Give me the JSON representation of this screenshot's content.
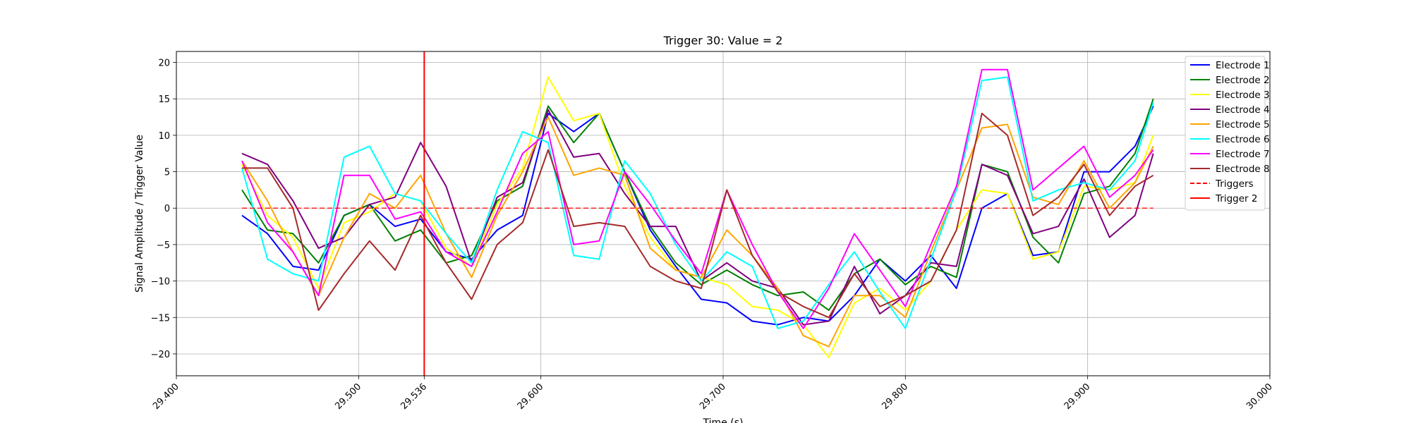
{
  "chart_data": {
    "type": "line",
    "title": "Trigger 30: Value = 2",
    "xlabel": "Time (s)",
    "ylabel": "Signal Amplitude / Trigger Value",
    "xlim": [
      29.4,
      30.0
    ],
    "ylim": [
      -23,
      21.5
    ],
    "grid": true,
    "legend_position": "top-right",
    "x_tick_values": [
      29.4,
      29.5,
      29.536,
      29.6,
      29.7,
      29.8,
      29.9,
      30.0
    ],
    "x_tick_labels": [
      "29.400",
      "29.500",
      "29.536",
      "29.600",
      "29.700",
      "29.800",
      "29.900",
      "30.000"
    ],
    "y_tick_values": [
      -20,
      -15,
      -10,
      -5,
      0,
      5,
      10,
      15,
      20
    ],
    "y_tick_labels": [
      "−20",
      "−15",
      "−10",
      "−5",
      "0",
      "5",
      "10",
      "15",
      "20"
    ],
    "x": [
      29.436,
      29.45,
      29.464,
      29.478,
      29.492,
      29.506,
      29.52,
      29.534,
      29.548,
      29.562,
      29.576,
      29.59,
      29.604,
      29.618,
      29.632,
      29.646,
      29.66,
      29.674,
      29.688,
      29.702,
      29.716,
      29.73,
      29.744,
      29.758,
      29.772,
      29.786,
      29.8,
      29.814,
      29.828,
      29.842,
      29.856,
      29.87,
      29.884,
      29.898,
      29.912,
      29.926,
      29.936
    ],
    "series": [
      {
        "name": "Electrode 1",
        "color": "#0000ff",
        "values": [
          -1,
          -3.5,
          -8,
          -8.5,
          -1,
          0.5,
          -2.5,
          -1.5,
          -6,
          -7,
          -3,
          -1,
          13,
          10.5,
          13,
          5,
          -3,
          -8,
          -12.5,
          -13,
          -15.5,
          -16,
          -15,
          -15.5,
          -12,
          -7,
          -10,
          -6.5,
          -11,
          0,
          2,
          -6.5,
          -6,
          5,
          5,
          8.5,
          14
        ]
      },
      {
        "name": "Electrode 2",
        "color": "#008000",
        "values": [
          2.5,
          -3,
          -3.5,
          -7.5,
          -1,
          0.5,
          -4.5,
          -3,
          -7.5,
          -6.5,
          1,
          3,
          14,
          9,
          13,
          5,
          -2.5,
          -7.5,
          -10.5,
          -8.5,
          -10.5,
          -12,
          -11.5,
          -14,
          -9,
          -7,
          -10.5,
          -8,
          -9.5,
          6,
          5,
          -4,
          -7.5,
          2,
          3,
          7.5,
          15
        ]
      },
      {
        "name": "Electrode 3",
        "color": "#ffff00",
        "values": [
          6,
          -1,
          -4,
          -11,
          -2,
          -0.5,
          2,
          1,
          -5.5,
          -8,
          0.5,
          5.5,
          18,
          12,
          13,
          3,
          -4,
          -8.5,
          -9.5,
          -10.5,
          -13.5,
          -14,
          -16,
          -20.5,
          -13,
          -11,
          -14,
          -10,
          -3,
          2.5,
          2,
          -7,
          -6,
          3,
          2.5,
          3.5,
          10
        ]
      },
      {
        "name": "Electrode 4",
        "color": "#800080",
        "values": [
          7.5,
          6,
          1,
          -5.5,
          -4,
          0.5,
          1.5,
          9,
          3,
          -7.5,
          1.5,
          3.5,
          13.5,
          7,
          7.5,
          2,
          -2.5,
          -2.5,
          -10,
          -7.5,
          -10,
          -11,
          -16,
          -15.5,
          -8,
          -14.5,
          -12,
          -7.5,
          -8,
          6,
          4.5,
          -3.5,
          -2.5,
          4,
          -4,
          -1,
          7.5
        ]
      },
      {
        "name": "Electrode 5",
        "color": "#ffa500",
        "values": [
          6.5,
          1,
          -6,
          -12,
          -4,
          2,
          0,
          4.5,
          -3.5,
          -9.5,
          -1,
          5,
          12.5,
          4.5,
          5.5,
          4.5,
          -5.5,
          -8.5,
          -9.5,
          -3,
          -6.5,
          -11,
          -17.5,
          -19,
          -12,
          -12,
          -15,
          -6,
          2.5,
          11,
          11.5,
          1.5,
          0.5,
          6.5,
          0,
          3.5,
          8.5
        ]
      },
      {
        "name": "Electrode 6",
        "color": "#00ffff",
        "values": [
          5.5,
          -7,
          -9,
          -10,
          7,
          8.5,
          2,
          1,
          -3.5,
          -7.5,
          2.5,
          10.5,
          9,
          -6.5,
          -7,
          6.5,
          2,
          -5,
          -10,
          -6,
          -8,
          -16.5,
          -15.5,
          -10.5,
          -6,
          -11.5,
          -16.5,
          -7,
          2.5,
          17.5,
          18,
          1,
          2.5,
          3.5,
          2.5,
          6.5,
          14.5
        ]
      },
      {
        "name": "Electrode 7",
        "color": "#ff00ff",
        "values": [
          6.5,
          -2,
          -6,
          -12,
          4.5,
          4.5,
          -1.5,
          -0.5,
          -6,
          -8,
          -0.5,
          7.5,
          10.5,
          -5,
          -4.5,
          5,
          0.5,
          -4.5,
          -9,
          2.5,
          -5,
          -11.5,
          -16.5,
          -11,
          -3.5,
          -8.5,
          -13.5,
          -5,
          3,
          19,
          19,
          2.5,
          5.5,
          8.5,
          1.5,
          4.5,
          8
        ]
      },
      {
        "name": "Electrode 8",
        "color": "#a52a2a",
        "values": [
          5.5,
          5.5,
          0,
          -14,
          -9,
          -4.5,
          -8.5,
          -1,
          -7.5,
          -12.5,
          -5,
          -2,
          8,
          -2.5,
          -2,
          -2.5,
          -8,
          -10,
          -11,
          2.5,
          -6.5,
          -11.5,
          -13.5,
          -15,
          -9,
          -13.5,
          -12,
          -10,
          -3,
          13,
          10,
          -1,
          1.5,
          6,
          -1,
          3,
          4.5
        ]
      }
    ],
    "triggers": {
      "name": "Triggers",
      "color": "#ff0000",
      "style": "dashed",
      "value": 0,
      "x_range": [
        29.436,
        29.936
      ]
    },
    "trigger_line": {
      "name": "Trigger 2",
      "color": "#ff0000",
      "x": 29.536
    }
  }
}
